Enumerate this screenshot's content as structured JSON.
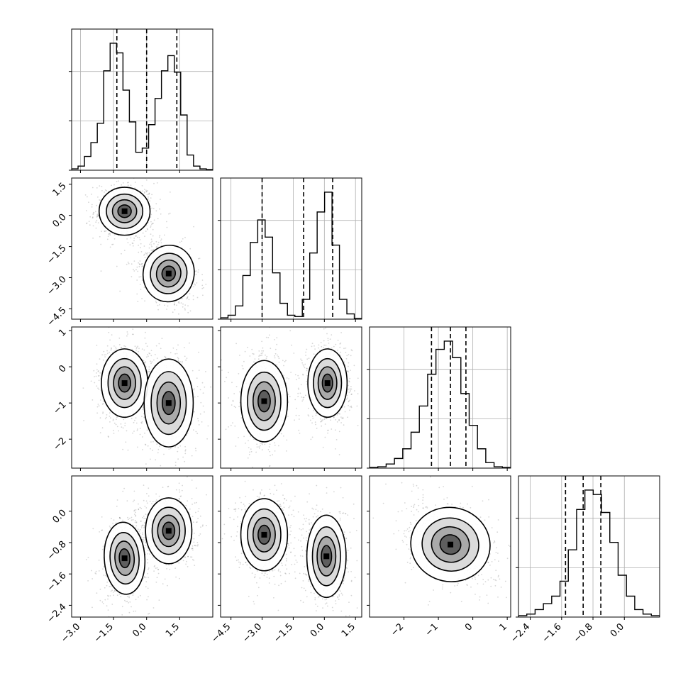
{
  "chart_data": {
    "type": "corner",
    "dims": 4,
    "grid": true,
    "panels": [
      {
        "kind": "hist",
        "row": 0,
        "col": 0,
        "param": 0,
        "xlim": [
          -3.4,
          3.0
        ],
        "counts": [
          0.01,
          0.03,
          0.1,
          0.2,
          0.34,
          0.72,
          0.92,
          0.85,
          0.58,
          0.35,
          0.13,
          0.16,
          0.33,
          0.52,
          0.72,
          0.83,
          0.71,
          0.4,
          0.11,
          0.03,
          0.01,
          0.005
        ],
        "quantiles": [
          -1.35,
          0.0,
          1.37
        ]
      },
      {
        "kind": "hist",
        "row": 1,
        "col": 1,
        "param": 1,
        "xlim": [
          -5.0,
          1.8
        ],
        "counts": [
          0.01,
          0.03,
          0.1,
          0.33,
          0.58,
          0.75,
          0.62,
          0.35,
          0.12,
          0.03,
          0.02,
          0.15,
          0.5,
          0.81,
          0.96,
          0.56,
          0.15,
          0.04,
          0.005
        ],
        "quantiles": [
          -3.0,
          -1.0,
          0.4
        ]
      },
      {
        "kind": "hist",
        "row": 2,
        "col": 2,
        "param": 2,
        "xlim": [
          -3.0,
          1.1
        ],
        "counts": [
          0.005,
          0.01,
          0.03,
          0.07,
          0.14,
          0.26,
          0.45,
          0.68,
          0.86,
          0.92,
          0.8,
          0.54,
          0.31,
          0.14,
          0.04,
          0.01,
          0.005
        ],
        "quantiles": [
          -1.2,
          -0.65,
          -0.2
        ]
      },
      {
        "kind": "hist",
        "row": 3,
        "col": 3,
        "param": 3,
        "xlim": [
          -2.7,
          0.9
        ],
        "counts": [
          0.01,
          0.02,
          0.05,
          0.09,
          0.14,
          0.24,
          0.45,
          0.72,
          0.85,
          0.82,
          0.7,
          0.5,
          0.28,
          0.14,
          0.05,
          0.02,
          0.01
        ],
        "quantiles": [
          -1.5,
          -1.05,
          -0.6
        ]
      },
      {
        "kind": "density",
        "row": 1,
        "col": 0,
        "xlim": [
          -3.4,
          3.0
        ],
        "ylim": [
          -5.0,
          1.8
        ],
        "modes": [
          {
            "x": -1.0,
            "y": 0.2,
            "sx": 0.55,
            "sy": 0.55,
            "rho": 0.0,
            "w": 1.0
          },
          {
            "x": 1.0,
            "y": -2.8,
            "sx": 0.55,
            "sy": 0.65,
            "rho": -0.3,
            "w": 1.0
          }
        ]
      },
      {
        "kind": "density",
        "row": 2,
        "col": 0,
        "xlim": [
          -3.4,
          3.0
        ],
        "ylim": [
          -2.8,
          1.1
        ],
        "modes": [
          {
            "x": -1.0,
            "y": -0.45,
            "sx": 0.5,
            "sy": 0.45,
            "rho": 0.0,
            "w": 1.0
          },
          {
            "x": 1.0,
            "y": -1.0,
            "sx": 0.55,
            "sy": 0.6,
            "rho": 0.0,
            "w": 0.8
          }
        ]
      },
      {
        "kind": "density",
        "row": 2,
        "col": 1,
        "xlim": [
          -5.0,
          1.8
        ],
        "ylim": [
          -2.8,
          1.1
        ],
        "modes": [
          {
            "x": -2.9,
            "y": -0.95,
            "sx": 0.55,
            "sy": 0.55,
            "rho": 0.0,
            "w": 0.85
          },
          {
            "x": 0.15,
            "y": -0.45,
            "sx": 0.45,
            "sy": 0.45,
            "rho": 0.0,
            "w": 1.0
          }
        ]
      },
      {
        "kind": "density",
        "row": 3,
        "col": 0,
        "xlim": [
          -3.4,
          3.0
        ],
        "ylim": [
          -2.7,
          0.9
        ],
        "modes": [
          {
            "x": -1.0,
            "y": -1.2,
            "sx": 0.45,
            "sy": 0.45,
            "rho": 0.1,
            "w": 0.85
          },
          {
            "x": 1.0,
            "y": -0.5,
            "sx": 0.5,
            "sy": 0.4,
            "rho": 0.0,
            "w": 1.0
          }
        ]
      },
      {
        "kind": "density",
        "row": 3,
        "col": 1,
        "xlim": [
          -5.0,
          1.8
        ],
        "ylim": [
          -2.7,
          0.9
        ],
        "modes": [
          {
            "x": -2.9,
            "y": -0.6,
            "sx": 0.55,
            "sy": 0.45,
            "rho": 0.0,
            "w": 0.85
          },
          {
            "x": 0.1,
            "y": -1.15,
            "sx": 0.45,
            "sy": 0.5,
            "rho": 0.0,
            "w": 1.0
          }
        ]
      },
      {
        "kind": "density",
        "row": 3,
        "col": 2,
        "xlim": [
          -3.0,
          1.1
        ],
        "ylim": [
          -2.7,
          0.9
        ],
        "modes": [
          {
            "x": -0.65,
            "y": -0.85,
            "sx": 0.55,
            "sy": 0.45,
            "rho": -0.35,
            "w": 1.0
          }
        ]
      }
    ],
    "axes": {
      "x": [
        {
          "col": 0,
          "ticks": [
            {
              "v": -3.0,
              "label": "−3.0"
            },
            {
              "v": -1.5,
              "label": "−1.5"
            },
            {
              "v": 0.0,
              "label": "0.0"
            },
            {
              "v": 1.5,
              "label": "1.5"
            }
          ]
        },
        {
          "col": 1,
          "ticks": [
            {
              "v": -4.5,
              "label": "−4.5"
            },
            {
              "v": -3.0,
              "label": "−3.0"
            },
            {
              "v": -1.5,
              "label": "−1.5"
            },
            {
              "v": 0.0,
              "label": "0.0"
            },
            {
              "v": 1.5,
              "label": "1.5"
            }
          ]
        },
        {
          "col": 2,
          "ticks": [
            {
              "v": -2,
              "label": "−2"
            },
            {
              "v": -1,
              "label": "−1"
            },
            {
              "v": 0,
              "label": "0"
            },
            {
              "v": 1,
              "label": "1"
            }
          ]
        },
        {
          "col": 3,
          "ticks": [
            {
              "v": -2.4,
              "label": "−2.4"
            },
            {
              "v": -1.6,
              "label": "−1.6"
            },
            {
              "v": -0.8,
              "label": "−0.8"
            },
            {
              "v": 0.0,
              "label": "0.0"
            }
          ]
        }
      ],
      "y": [
        {
          "row": 1,
          "ticks": [
            {
              "v": 1.5,
              "label": "1.5"
            },
            {
              "v": 0.0,
              "label": "0.0"
            },
            {
              "v": -1.5,
              "label": "−1.5"
            },
            {
              "v": -3.0,
              "label": "−3.0"
            },
            {
              "v": -4.5,
              "label": "−4.5"
            }
          ]
        },
        {
          "row": 2,
          "ticks": [
            {
              "v": 1,
              "label": "1"
            },
            {
              "v": 0,
              "label": "0"
            },
            {
              "v": -1,
              "label": "−1"
            },
            {
              "v": -2,
              "label": "−2"
            }
          ]
        },
        {
          "row": 3,
          "ticks": [
            {
              "v": 0.0,
              "label": "0.0"
            },
            {
              "v": -0.8,
              "label": "−0.8"
            },
            {
              "v": -1.6,
              "label": "−1.6"
            },
            {
              "v": -2.4,
              "label": "−2.4"
            }
          ]
        }
      ]
    }
  }
}
